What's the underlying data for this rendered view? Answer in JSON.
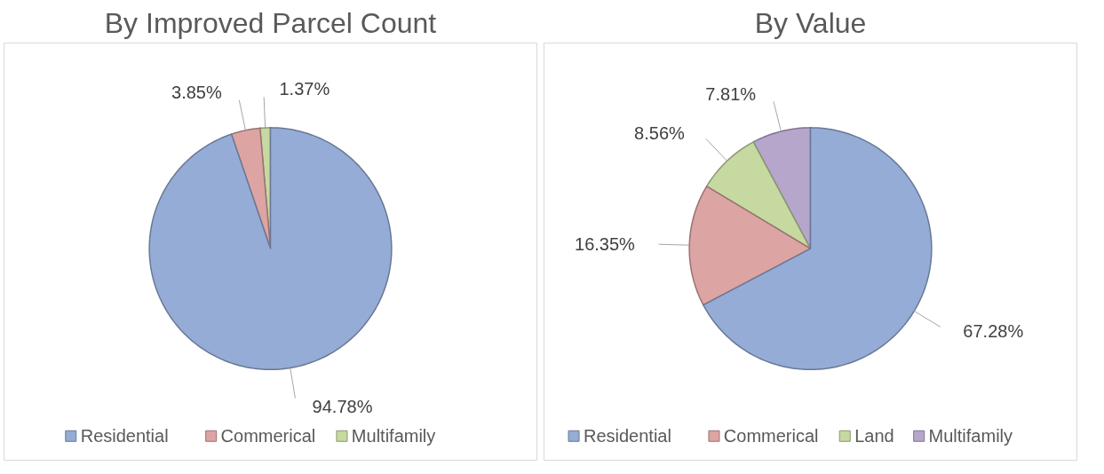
{
  "chart_data": [
    {
      "type": "pie",
      "title": "By Improved Parcel Count",
      "categories": [
        "Residential",
        "Commerical",
        "Multifamily"
      ],
      "values": [
        94.78,
        3.85,
        1.37
      ],
      "colors": [
        "#95acd6",
        "#dca4a3",
        "#c6d9a0"
      ],
      "value_labels": [
        "94.78%",
        "3.85%",
        "1.37%"
      ],
      "legend": "bottom"
    },
    {
      "type": "pie",
      "title": "By Value",
      "categories": [
        "Residential",
        "Commerical",
        "Land",
        "Multifamily"
      ],
      "values": [
        67.28,
        16.35,
        8.56,
        7.81
      ],
      "colors": [
        "#95acd6",
        "#dca4a3",
        "#c6d9a0",
        "#b7a6cc"
      ],
      "value_labels": [
        "67.28%",
        "16.35%",
        "8.56%",
        "7.81%"
      ],
      "legend": "bottom"
    }
  ]
}
